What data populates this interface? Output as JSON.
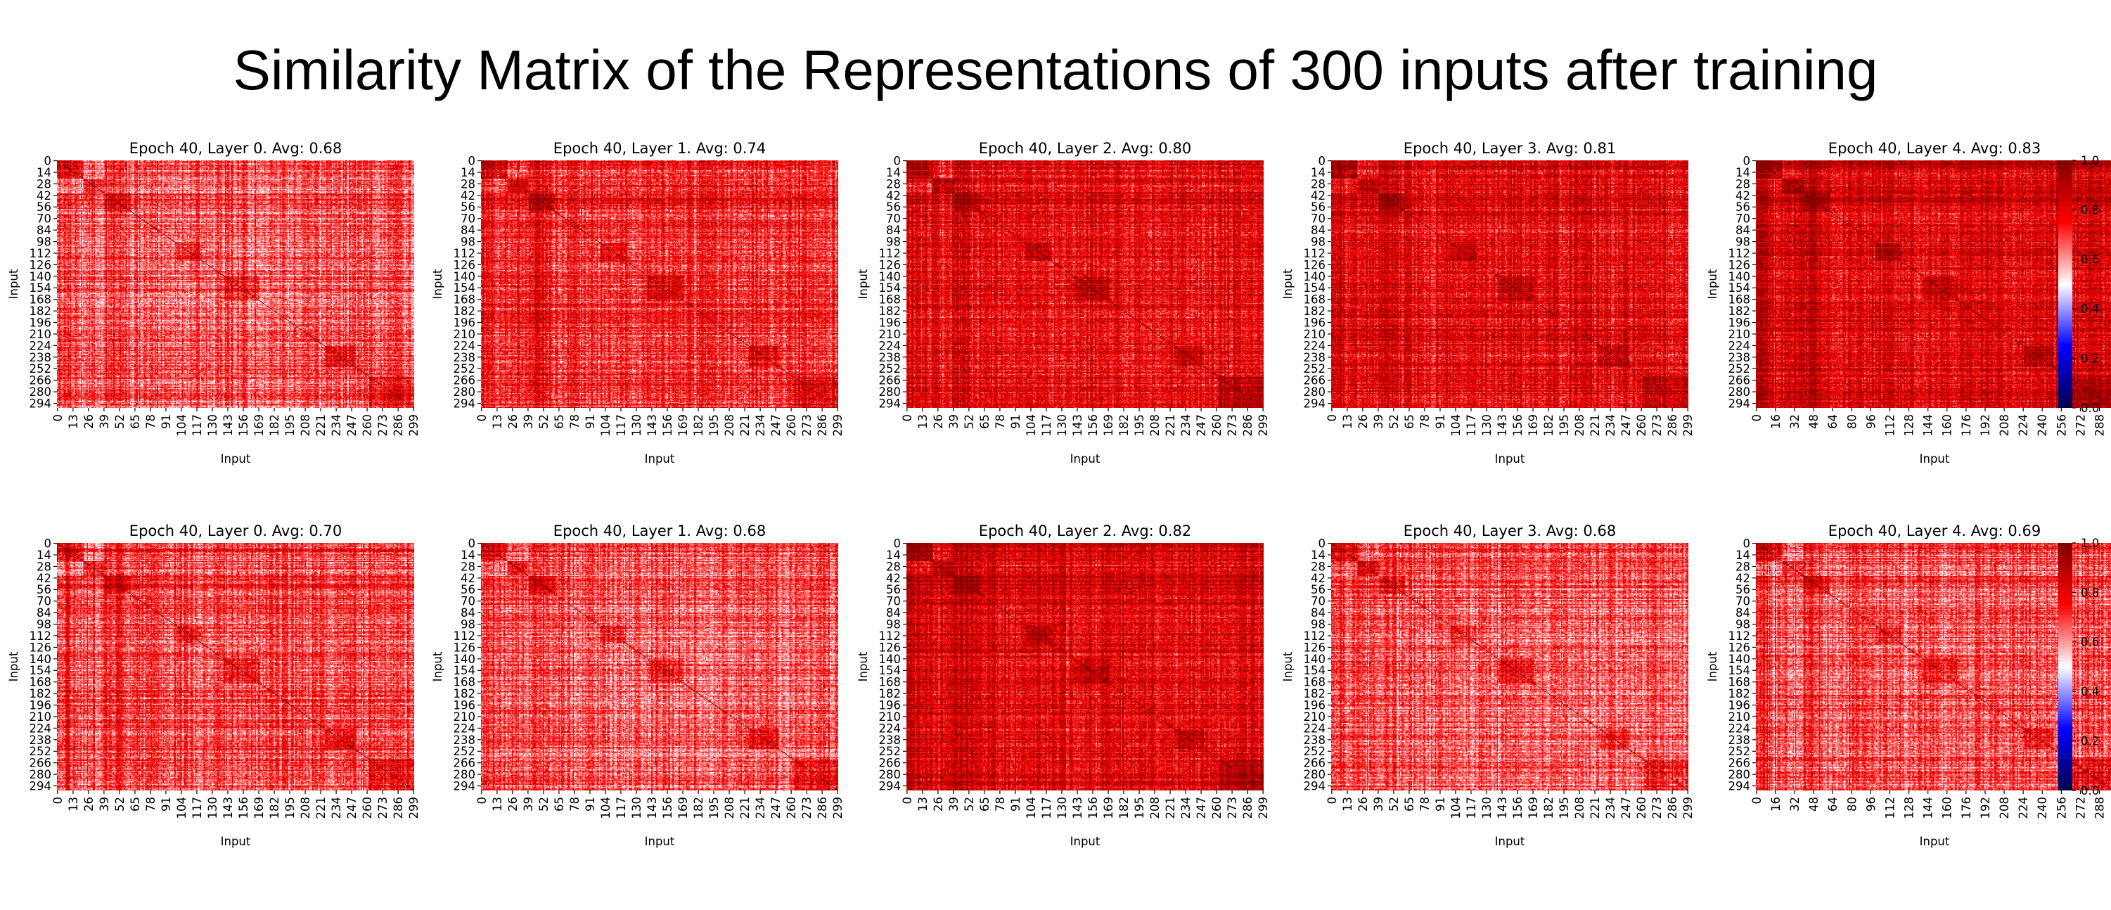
{
  "title": "Similarity Matrix of the Representations of 300 inputs after training",
  "colorscale": {
    "name": "seismic",
    "vmin": 0.0,
    "vmax": 1.0,
    "ticks": [
      "0.0",
      "0.2",
      "0.4",
      "0.6",
      "0.8",
      "1.0"
    ],
    "stops": [
      "#00004c",
      "#0000ff",
      "#ffffff",
      "#ff0000",
      "#7f0000"
    ]
  },
  "chart_data": [
    {
      "type": "heatmap",
      "title": "Epoch 40, Layer 0. Avg: 0.68",
      "xlabel": "Input",
      "ylabel": "Input",
      "x_tick_labels": [
        "0",
        "13",
        "26",
        "39",
        "52",
        "65",
        "78",
        "91",
        "104",
        "117",
        "130",
        "143",
        "156",
        "169",
        "182",
        "195",
        "208",
        "221",
        "234",
        "247",
        "260",
        "273",
        "286",
        "299"
      ],
      "y_tick_labels": [
        "0",
        "14",
        "28",
        "42",
        "56",
        "70",
        "84",
        "98",
        "112",
        "126",
        "140",
        "154",
        "168",
        "182",
        "196",
        "210",
        "224",
        "238",
        "252",
        "266",
        "280",
        "294"
      ],
      "size": 300,
      "avg": 0.68,
      "zlim": [
        0.0,
        1.0
      ]
    },
    {
      "type": "heatmap",
      "title": "Epoch 40, Layer 1. Avg: 0.74",
      "xlabel": "Input",
      "ylabel": "Input",
      "x_tick_labels": [
        "0",
        "13",
        "26",
        "39",
        "52",
        "65",
        "78",
        "91",
        "104",
        "117",
        "130",
        "143",
        "156",
        "169",
        "182",
        "195",
        "208",
        "221",
        "234",
        "247",
        "260",
        "273",
        "286",
        "299"
      ],
      "y_tick_labels": [
        "0",
        "14",
        "28",
        "42",
        "56",
        "70",
        "84",
        "98",
        "112",
        "126",
        "140",
        "154",
        "168",
        "182",
        "196",
        "210",
        "224",
        "238",
        "252",
        "266",
        "280",
        "294"
      ],
      "size": 300,
      "avg": 0.74,
      "zlim": [
        0.0,
        1.0
      ]
    },
    {
      "type": "heatmap",
      "title": "Epoch 40, Layer 2. Avg: 0.80",
      "xlabel": "Input",
      "ylabel": "Input",
      "x_tick_labels": [
        "0",
        "13",
        "26",
        "39",
        "52",
        "65",
        "78",
        "91",
        "104",
        "117",
        "130",
        "143",
        "156",
        "169",
        "182",
        "195",
        "208",
        "221",
        "234",
        "247",
        "260",
        "273",
        "286",
        "299"
      ],
      "y_tick_labels": [
        "0",
        "14",
        "28",
        "42",
        "56",
        "70",
        "84",
        "98",
        "112",
        "126",
        "140",
        "154",
        "168",
        "182",
        "196",
        "210",
        "224",
        "238",
        "252",
        "266",
        "280",
        "294"
      ],
      "size": 300,
      "avg": 0.8,
      "zlim": [
        0.0,
        1.0
      ]
    },
    {
      "type": "heatmap",
      "title": "Epoch 40, Layer 3. Avg: 0.81",
      "xlabel": "Input",
      "ylabel": "Input",
      "x_tick_labels": [
        "0",
        "13",
        "26",
        "39",
        "52",
        "65",
        "78",
        "91",
        "104",
        "117",
        "130",
        "143",
        "156",
        "169",
        "182",
        "195",
        "208",
        "221",
        "234",
        "247",
        "260",
        "273",
        "286",
        "299"
      ],
      "y_tick_labels": [
        "0",
        "14",
        "28",
        "42",
        "56",
        "70",
        "84",
        "98",
        "112",
        "126",
        "140",
        "154",
        "168",
        "182",
        "196",
        "210",
        "224",
        "238",
        "252",
        "266",
        "280",
        "294"
      ],
      "size": 300,
      "avg": 0.81,
      "zlim": [
        0.0,
        1.0
      ]
    },
    {
      "type": "heatmap",
      "title": "Epoch 40, Layer 4. Avg: 0.83",
      "xlabel": "Input",
      "ylabel": "Input",
      "x_tick_labels": [
        "0",
        "16",
        "32",
        "48",
        "64",
        "80",
        "96",
        "112",
        "128",
        "144",
        "160",
        "176",
        "192",
        "208",
        "224",
        "240",
        "256",
        "272",
        "288"
      ],
      "y_tick_labels": [
        "0",
        "14",
        "28",
        "42",
        "56",
        "70",
        "84",
        "98",
        "112",
        "126",
        "140",
        "154",
        "168",
        "182",
        "196",
        "210",
        "224",
        "238",
        "252",
        "266",
        "280",
        "294"
      ],
      "size": 300,
      "avg": 0.83,
      "zlim": [
        0.0,
        1.0
      ]
    },
    {
      "type": "heatmap",
      "title": "Epoch 40, Layer 0. Avg: 0.70",
      "xlabel": "Input",
      "ylabel": "Input",
      "x_tick_labels": [
        "0",
        "13",
        "26",
        "39",
        "52",
        "65",
        "78",
        "91",
        "104",
        "117",
        "130",
        "143",
        "156",
        "169",
        "182",
        "195",
        "208",
        "221",
        "234",
        "247",
        "260",
        "273",
        "286",
        "299"
      ],
      "y_tick_labels": [
        "0",
        "14",
        "28",
        "42",
        "56",
        "70",
        "84",
        "98",
        "112",
        "126",
        "140",
        "154",
        "168",
        "182",
        "196",
        "210",
        "224",
        "238",
        "252",
        "266",
        "280",
        "294"
      ],
      "size": 300,
      "avg": 0.7,
      "zlim": [
        0.0,
        1.0
      ]
    },
    {
      "type": "heatmap",
      "title": "Epoch 40, Layer 1. Avg: 0.68",
      "xlabel": "Input",
      "ylabel": "Input",
      "x_tick_labels": [
        "0",
        "13",
        "26",
        "39",
        "52",
        "65",
        "78",
        "91",
        "104",
        "117",
        "130",
        "143",
        "156",
        "169",
        "182",
        "195",
        "208",
        "221",
        "234",
        "247",
        "260",
        "273",
        "286",
        "299"
      ],
      "y_tick_labels": [
        "0",
        "14",
        "28",
        "42",
        "56",
        "70",
        "84",
        "98",
        "112",
        "126",
        "140",
        "154",
        "168",
        "182",
        "196",
        "210",
        "224",
        "238",
        "252",
        "266",
        "280",
        "294"
      ],
      "size": 300,
      "avg": 0.68,
      "zlim": [
        0.0,
        1.0
      ]
    },
    {
      "type": "heatmap",
      "title": "Epoch 40, Layer 2. Avg: 0.82",
      "xlabel": "Input",
      "ylabel": "Input",
      "x_tick_labels": [
        "0",
        "13",
        "26",
        "39",
        "52",
        "65",
        "78",
        "91",
        "104",
        "117",
        "130",
        "143",
        "156",
        "169",
        "182",
        "195",
        "208",
        "221",
        "234",
        "247",
        "260",
        "273",
        "286",
        "299"
      ],
      "y_tick_labels": [
        "0",
        "14",
        "28",
        "42",
        "56",
        "70",
        "84",
        "98",
        "112",
        "126",
        "140",
        "154",
        "168",
        "182",
        "196",
        "210",
        "224",
        "238",
        "252",
        "266",
        "280",
        "294"
      ],
      "size": 300,
      "avg": 0.82,
      "zlim": [
        0.0,
        1.0
      ]
    },
    {
      "type": "heatmap",
      "title": "Epoch 40, Layer 3. Avg: 0.68",
      "xlabel": "Input",
      "ylabel": "Input",
      "x_tick_labels": [
        "0",
        "13",
        "26",
        "39",
        "52",
        "65",
        "78",
        "91",
        "104",
        "117",
        "130",
        "143",
        "156",
        "169",
        "182",
        "195",
        "208",
        "221",
        "234",
        "247",
        "260",
        "273",
        "286",
        "299"
      ],
      "y_tick_labels": [
        "0",
        "14",
        "28",
        "42",
        "56",
        "70",
        "84",
        "98",
        "112",
        "126",
        "140",
        "154",
        "168",
        "182",
        "196",
        "210",
        "224",
        "238",
        "252",
        "266",
        "280",
        "294"
      ],
      "size": 300,
      "avg": 0.68,
      "zlim": [
        0.0,
        1.0
      ]
    },
    {
      "type": "heatmap",
      "title": "Epoch 40, Layer 4. Avg: 0.69",
      "xlabel": "Input",
      "ylabel": "Input",
      "x_tick_labels": [
        "0",
        "16",
        "32",
        "48",
        "64",
        "80",
        "96",
        "112",
        "128",
        "144",
        "160",
        "176",
        "192",
        "208",
        "224",
        "240",
        "256",
        "272",
        "288"
      ],
      "y_tick_labels": [
        "0",
        "14",
        "28",
        "42",
        "56",
        "70",
        "84",
        "98",
        "112",
        "126",
        "140",
        "154",
        "168",
        "182",
        "196",
        "210",
        "224",
        "238",
        "252",
        "266",
        "280",
        "294"
      ],
      "size": 300,
      "avg": 0.69,
      "zlim": [
        0.0,
        1.0
      ]
    }
  ]
}
